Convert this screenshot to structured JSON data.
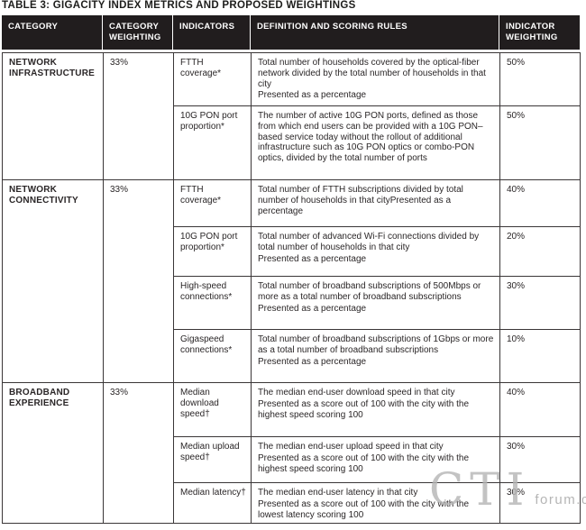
{
  "title": "TABLE 3: GIGACITY INDEX METRICS AND PROPOSED WEIGHTINGS",
  "table": {
    "columns": [
      "CATEGORY",
      "CATEGORY WEIGHTING",
      "INDICATORS",
      "DEFINITION AND SCORING RULES",
      "INDICATOR WEIGHTING"
    ],
    "categories": [
      {
        "name": "NETWORK INFRASTRUCTURE",
        "weighting": "33%",
        "rows": [
          {
            "indicator": "FTTH coverage*",
            "definition": [
              "Total number of households covered by the optical-fiber network divided by the total number of households in that city",
              "Presented as a percentage"
            ],
            "indicator_weighting": "50%"
          },
          {
            "indicator": "10G PON port proportion*",
            "definition": [
              "The number of active 10G PON ports, defined as those from which end users can be provided with a 10G PON–based service today without the rollout of additional infrastructure such as 10G PON optics or combo-PON optics, divided by the total number of ports"
            ],
            "indicator_weighting": "50%"
          }
        ]
      },
      {
        "name": "NETWORK CONNECTIVITY",
        "weighting": "33%",
        "rows": [
          {
            "indicator": "FTTH coverage*",
            "definition": [
              "Total number of FTTH subscriptions divided by total number of households in that cityPresented as a percentage"
            ],
            "indicator_weighting": "40%"
          },
          {
            "indicator": "10G PON port proportion*",
            "definition": [
              "Total number of advanced Wi-Fi connections divided by total number of households in that city",
              "Presented as a percentage"
            ],
            "indicator_weighting": "20%"
          },
          {
            "indicator": "High-speed connections*",
            "definition": [
              "Total number of broadband subscriptions of 500Mbps or more as a total number of broadband subscriptions",
              "Presented as a percentage"
            ],
            "indicator_weighting": "30%"
          },
          {
            "indicator": "Gigaspeed connections*",
            "definition": [
              "Total number of broadband subscriptions of 1Gbps or more as a total number of broadband subscriptions",
              "Presented as a percentage"
            ],
            "indicator_weighting": "10%"
          }
        ]
      },
      {
        "name": "BROADBAND EXPERIENCE",
        "weighting": "33%",
        "rows": [
          {
            "indicator": "Median download speed†",
            "definition": [
              "The median end-user download speed in that city",
              "Presented as a score out of 100 with the city with the highest speed scoring 100"
            ],
            "indicator_weighting": "40%"
          },
          {
            "indicator": "Median upload speed†",
            "definition": [
              "The median end-user upload speed in that city",
              "Presented as a score out of 100 with the city with the highest speed scoring 100"
            ],
            "indicator_weighting": "30%"
          },
          {
            "indicator": "Median latency†",
            "definition": [
              "The median end-user latency in that city",
              "Presented as a score out of 100 with the city with the lowest latency scoring 100"
            ],
            "indicator_weighting": "30%"
          }
        ]
      }
    ]
  },
  "watermark": {
    "big": "CTI",
    "small": "forum.com"
  },
  "colors": {
    "header_bg": "#211d1e",
    "border": "#3a3637",
    "text": "#2a2627",
    "watermark": "#b5b5b5"
  }
}
